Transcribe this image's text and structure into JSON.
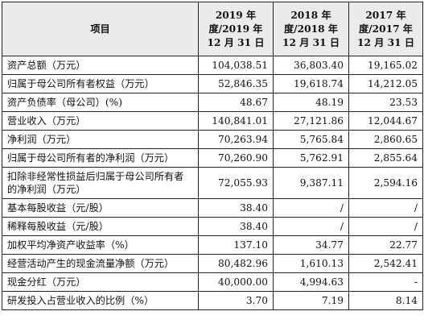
{
  "header": {
    "item": "项目",
    "col2019": "2019 年度/2019 年 12 月 31 日",
    "col2018": "2018 年度/2018 年 12 月 31 日",
    "col2017": "2017 年度/2017 年 12 月 31 日"
  },
  "rows": [
    {
      "label": "资产总额（万元）",
      "v2019": "104,038.51",
      "v2018": "36,803.40",
      "v2017": "19,165.02"
    },
    {
      "label": "归属于母公司所有者权益（万元）",
      "v2019": "52,846.35",
      "v2018": "19,618.74",
      "v2017": "14,212.05"
    },
    {
      "label": "资产负债率（母公司）(%)",
      "v2019": "48.67",
      "v2018": "48.19",
      "v2017": "23.53"
    },
    {
      "label": "营业收入（万元）",
      "v2019": "140,841.01",
      "v2018": "27,121.86",
      "v2017": "12,044.67"
    },
    {
      "label": "净利润（万元）",
      "v2019": "70,263.94",
      "v2018": "5,765.84",
      "v2017": "2,860.65"
    },
    {
      "label": "归属于母公司所有者的净利润（万元）",
      "v2019": "70,260.90",
      "v2018": "5,762.91",
      "v2017": "2,855.64"
    },
    {
      "label": "扣除非经常性损益后归属于母公司所有者的净利润（万元）",
      "v2019": "72,055.93",
      "v2018": "9,387.11",
      "v2017": "2,594.16"
    },
    {
      "label": "基本每股收益（元/股）",
      "v2019": "38.40",
      "v2018": "/",
      "v2017": "/"
    },
    {
      "label": "稀释每股收益（元/股）",
      "v2019": "38.40",
      "v2018": "/",
      "v2017": "/"
    },
    {
      "label": "加权平均净资产收益率（%）",
      "v2019": "137.10",
      "v2018": "34.77",
      "v2017": "22.77"
    },
    {
      "label": "经营活动产生的现金流量净额（万元）",
      "v2019": "80,482.96",
      "v2018": "1,610.13",
      "v2017": "2,542.41"
    },
    {
      "label": "现金分红（万元）",
      "v2019": "40,000.00",
      "v2018": "4,994.63",
      "v2017": "-"
    },
    {
      "label": "研发投入占营业收入的比例（%）",
      "v2019": "3.70",
      "v2018": "7.19",
      "v2017": "8.14"
    }
  ]
}
